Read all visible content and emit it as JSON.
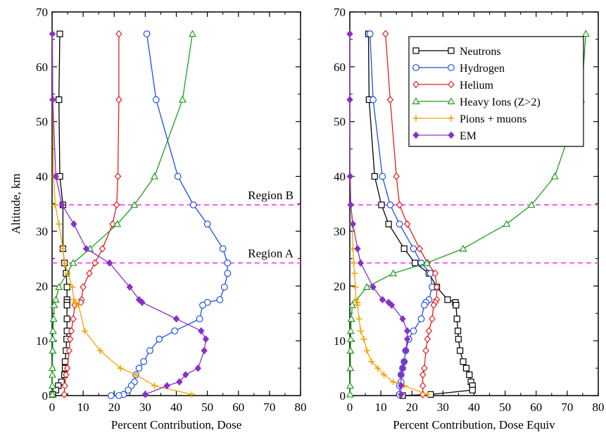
{
  "chart_data": [
    {
      "type": "line",
      "xlabel": "Percent Contribution, Dose",
      "ylabel": "Altitude, km",
      "xlim": [
        0,
        80
      ],
      "ylim": [
        0,
        70
      ],
      "xticks": [
        0,
        10,
        20,
        30,
        40,
        50,
        60,
        70,
        80
      ],
      "yticks": [
        0,
        10,
        20,
        30,
        40,
        50,
        60,
        70
      ],
      "regions": [
        {
          "name": "Region A",
          "y": 24.2
        },
        {
          "name": "Region B",
          "y": 34.8
        }
      ],
      "series": [
        {
          "name": "Neutrons",
          "color": "#000000",
          "marker": "square",
          "x": [
            2.5,
            2.2,
            2.5,
            3.5,
            3.5,
            4,
            4.5,
            4.8,
            4.8,
            4.8,
            4.8,
            4.8,
            4.8,
            4.7,
            4.5,
            4.2,
            4.2,
            4,
            3,
            2,
            1.2,
            0.2
          ],
          "y": [
            66,
            54,
            40,
            34.8,
            26.8,
            24.2,
            22.3,
            19.8,
            17.5,
            17,
            16.5,
            14,
            11.8,
            10.3,
            8.2,
            6.2,
            5,
            3.8,
            2.5,
            1.8,
            1,
            0.2
          ]
        },
        {
          "name": "Hydrogen",
          "color": "#1f4fe0",
          "marker": "circle",
          "x": [
            30.5,
            33.5,
            40.5,
            45.5,
            50,
            55,
            56.5,
            56.5,
            55.5,
            54,
            50,
            48.5,
            47.5,
            39.5,
            34.5,
            31.5,
            29.5,
            28,
            27,
            26.5,
            25.5,
            24.5,
            23,
            21.5,
            19
          ],
          "y": [
            66,
            54,
            40,
            34.8,
            31.3,
            26.8,
            24.2,
            22.3,
            19.8,
            17.5,
            17,
            16.5,
            14,
            11.8,
            10.3,
            8.2,
            6.2,
            5,
            3.8,
            2.5,
            1.8,
            1,
            0.2,
            0,
            0
          ]
        },
        {
          "name": "Helium",
          "color": "#e02020",
          "marker": "diamond",
          "x": [
            21.5,
            21.5,
            21.2,
            20.8,
            19.5,
            16.2,
            13.8,
            12,
            10,
            9.5,
            9.3,
            7.3,
            6.8,
            6.2,
            5.8,
            5.5,
            4.9,
            4.5,
            4.1,
            3.9
          ],
          "y": [
            66,
            54,
            40,
            34.8,
            31.3,
            26.8,
            24.2,
            22.3,
            19.8,
            17.5,
            17,
            16.5,
            14,
            11.8,
            10.3,
            8.2,
            5,
            3.8,
            1.8,
            0.2
          ]
        },
        {
          "name": "Heavy Ions (Z>2)",
          "color": "#1e9e1e",
          "marker": "triangle",
          "x": [
            45.2,
            42,
            33,
            26.5,
            21,
            12.2,
            6.8,
            2.2,
            1.2,
            0.7,
            0.5,
            0.3,
            0.2,
            0.2,
            0.1,
            0.1,
            0.1,
            0.1
          ],
          "y": [
            66,
            54,
            40,
            34.8,
            31.3,
            26.8,
            24.2,
            19.8,
            17.5,
            16.5,
            14,
            11.8,
            10.3,
            8.2,
            5,
            3.8,
            1.8,
            0.2
          ]
        },
        {
          "name": "Pions + muons",
          "color": "#f5a300",
          "marker": "plus",
          "x": [
            0.2,
            0.5,
            1,
            2.2,
            3.5,
            4,
            5,
            6.5,
            7,
            7.5,
            8.5,
            10.5,
            15.5,
            22,
            27,
            33,
            45
          ],
          "y": [
            54,
            40,
            34.8,
            31.3,
            26.8,
            24.2,
            22.3,
            19.8,
            17.5,
            17,
            16.5,
            11.8,
            8.2,
            5,
            3.8,
            1.8,
            0.2
          ]
        },
        {
          "name": "EM",
          "color": "#8a30c8",
          "marker": "filled-diamond",
          "x": [
            0.1,
            0.2,
            1.2,
            3.2,
            7,
            11,
            18.5,
            25,
            28,
            29,
            40,
            48,
            49.5,
            49,
            47,
            43,
            41,
            37,
            30
          ],
          "y": [
            66,
            54,
            40,
            34.8,
            31.3,
            26.8,
            24.2,
            19.8,
            17.5,
            17,
            14,
            11.8,
            10.3,
            8.2,
            5,
            3.8,
            2.5,
            1.8,
            0.2
          ]
        }
      ]
    },
    {
      "type": "line",
      "xlabel": "Percent Contribution, Dose Equiv",
      "ylabel": "",
      "xlim": [
        0,
        80
      ],
      "ylim": [
        0,
        70
      ],
      "xticks": [
        0,
        10,
        20,
        30,
        40,
        50,
        60,
        70,
        80
      ],
      "yticks": [
        0,
        10,
        20,
        30,
        40,
        50,
        60,
        70
      ],
      "legend": "top-right",
      "regions": [
        {
          "name": "",
          "y": 24.2
        },
        {
          "name": "",
          "y": 34.8
        }
      ],
      "series": [
        {
          "name": "Neutrons",
          "color": "#000000",
          "marker": "square",
          "x": [
            6,
            6.2,
            8,
            10.2,
            12.5,
            17.5,
            21,
            25.5,
            28,
            31.5,
            34,
            34.2,
            34.5,
            34.8,
            35,
            35.5,
            36.5,
            37.5,
            38.5,
            39,
            39.5,
            39.5,
            26,
            17
          ],
          "y": [
            66,
            54,
            40,
            34.8,
            31.3,
            26.8,
            24.2,
            22.3,
            19.8,
            17.5,
            17,
            16.5,
            14,
            11.8,
            10.3,
            8.2,
            6.2,
            5,
            3.8,
            2.5,
            1.8,
            1,
            0.2,
            0
          ]
        },
        {
          "name": "Hydrogen",
          "color": "#1f4fe0",
          "marker": "circle",
          "x": [
            6.5,
            7.5,
            10.5,
            13,
            16,
            20.5,
            23,
            26,
            26.5,
            25.5,
            24.5,
            24,
            23,
            20.5,
            19,
            18,
            17.5,
            17,
            16.5,
            16.5,
            16,
            16
          ],
          "y": [
            66,
            54,
            40,
            34.8,
            31.3,
            26.8,
            24.2,
            22.3,
            19.8,
            17.5,
            17,
            16.5,
            14,
            11.8,
            10.3,
            8.2,
            6.2,
            5,
            3.8,
            2.5,
            1.8,
            0.2
          ]
        },
        {
          "name": "Helium",
          "color": "#e02020",
          "marker": "diamond",
          "x": [
            11.5,
            13,
            15,
            16,
            18.5,
            22.5,
            25,
            27.5,
            28,
            28,
            27.5,
            27,
            26.5,
            25.5,
            25,
            24.5,
            24,
            23.5,
            23.5,
            23.5
          ],
          "y": [
            66,
            54,
            40,
            34.8,
            31.3,
            26.8,
            24.2,
            22.3,
            19.8,
            17.5,
            17,
            16.5,
            14,
            11.8,
            10.3,
            8.2,
            5,
            3.8,
            1.8,
            0.2
          ]
        },
        {
          "name": "Heavy Ions (Z>2)",
          "color": "#1e9e1e",
          "marker": "triangle",
          "x": [
            76,
            74.5,
            66,
            58.5,
            50.5,
            36.5,
            24.8,
            14,
            5.5,
            1.5,
            0.8,
            0.5,
            0.3,
            0.3,
            0.2,
            0.2,
            0.1,
            0.1
          ],
          "y": [
            66,
            54,
            40,
            34.8,
            31.3,
            26.8,
            24.2,
            22.3,
            19.8,
            17,
            16.5,
            14,
            11.8,
            10.3,
            8.2,
            5,
            1.8,
            0.2
          ]
        },
        {
          "name": "Pions + muons",
          "color": "#f5a300",
          "marker": "plus",
          "x": [
            0.2,
            0.3,
            0.8,
            1,
            1.3,
            1.5,
            1.8,
            2,
            2.5,
            2.5,
            3,
            3.5,
            4.5,
            5.5,
            7,
            9,
            11,
            14,
            17.5,
            25
          ],
          "y": [
            40,
            34.8,
            31.3,
            26.8,
            24.2,
            22.3,
            19.8,
            17.5,
            17,
            16.5,
            14,
            11.8,
            10.3,
            8.2,
            6.2,
            5,
            3.8,
            2.5,
            1.8,
            0.2
          ]
        },
        {
          "name": "EM",
          "color": "#8a30c8",
          "marker": "filled-diamond",
          "x": [
            0,
            0,
            0.1,
            0.3,
            1,
            2.5,
            3.5,
            7.5,
            10.5,
            12.5,
            13.5,
            17,
            18.5,
            18.5,
            18,
            17.5,
            17,
            16.5,
            16.5,
            16.5
          ],
          "y": [
            66,
            54,
            40,
            34.8,
            31.3,
            26.8,
            24.2,
            19.8,
            17.5,
            17,
            16.5,
            14,
            11.8,
            10.3,
            8.2,
            6.2,
            5,
            3.8,
            1.8,
            0.2
          ]
        }
      ]
    }
  ]
}
